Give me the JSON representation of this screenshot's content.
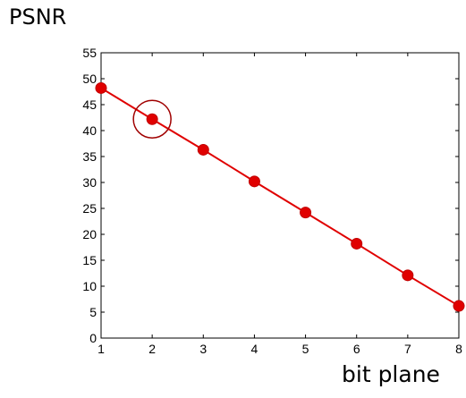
{
  "chart_data": {
    "type": "line",
    "title": "",
    "ylabel": "PSNR",
    "xlabel": "bit plane",
    "xlim": [
      1,
      8
    ],
    "ylim": [
      0,
      55
    ],
    "x_ticks": [
      1,
      2,
      3,
      4,
      5,
      6,
      7,
      8
    ],
    "y_ticks": [
      0,
      5,
      10,
      15,
      20,
      25,
      30,
      35,
      40,
      45,
      50,
      55
    ],
    "grid": false,
    "series": [
      {
        "x": [
          1,
          2,
          3,
          4,
          5,
          6,
          7,
          8
        ],
        "values": [
          48.2,
          42.2,
          36.3,
          30.2,
          24.2,
          18.2,
          12.1,
          6.2
        ],
        "color": "#e00000",
        "marker": "circle"
      }
    ],
    "annotations": [
      {
        "type": "circle",
        "target_x": 2,
        "target_y": 42.2,
        "color": "#a00000"
      }
    ]
  }
}
